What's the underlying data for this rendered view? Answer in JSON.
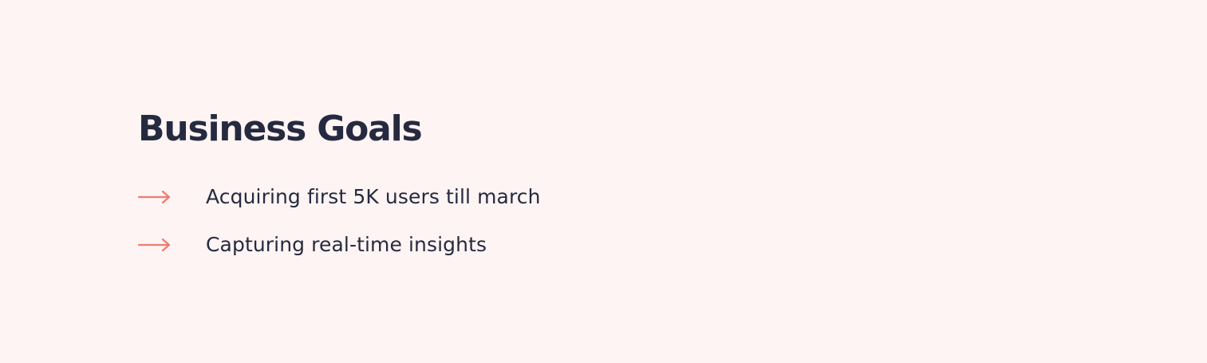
{
  "colors": {
    "background": "#FEF4F3",
    "text": "#262A40",
    "accent": "#F07B70"
  },
  "business_goals": {
    "title": "Business Goals",
    "items": [
      {
        "icon": "right-arrow-icon",
        "text": "Acquiring first 5K users till march"
      },
      {
        "icon": "right-arrow-icon",
        "text": "Capturing real-time insights"
      }
    ]
  }
}
